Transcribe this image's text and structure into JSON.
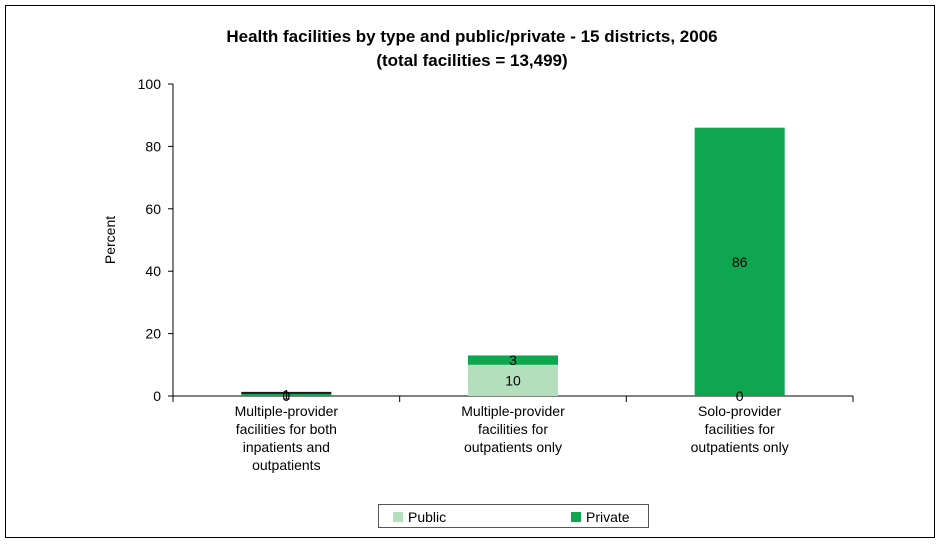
{
  "chart_data": {
    "type": "bar",
    "stacked": true,
    "title": "Health facilities by type and public/private - 15 districts, 2006",
    "subtitle": "(total facilities = 13,499)",
    "xlabel": "",
    "ylabel": "Percent",
    "ylim": [
      0,
      100
    ],
    "yticks": [
      0,
      20,
      40,
      60,
      80,
      100
    ],
    "grid": false,
    "legend_position": "bottom",
    "categories": [
      [
        "Multiple-provider",
        "facilities for both",
        "inpatients and",
        "outpatients"
      ],
      [
        "Multiple-provider",
        "facilities for",
        "outpatients only"
      ],
      [
        "Solo-provider",
        "facilities for",
        "outpatients only"
      ]
    ],
    "series": [
      {
        "name": "Public",
        "color": "#b3dfbc",
        "values": [
          0,
          10,
          0
        ]
      },
      {
        "name": "Private",
        "color": "#0fa650",
        "values": [
          1,
          3,
          86
        ]
      }
    ],
    "data_labels": [
      {
        "category": 0,
        "series": "Public",
        "text": "0"
      },
      {
        "category": 0,
        "series": "Private",
        "text": "1"
      },
      {
        "category": 1,
        "series": "Public",
        "text": "10"
      },
      {
        "category": 1,
        "series": "Private",
        "text": "3"
      },
      {
        "category": 2,
        "series": "Public",
        "text": "0"
      },
      {
        "category": 2,
        "series": "Private",
        "text": "86"
      }
    ]
  }
}
